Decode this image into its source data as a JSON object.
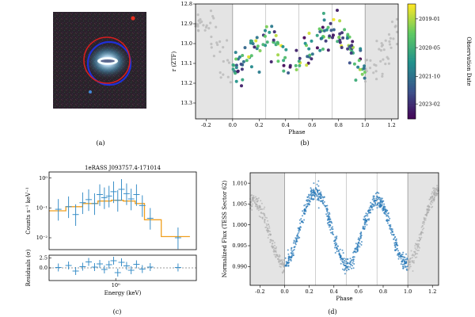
{
  "captions": {
    "a": "(a)",
    "b": "(b)",
    "c": "(c)",
    "d": "(d)"
  },
  "image_a": {
    "description_colors": {
      "background": "#2a1f2a",
      "red_ring": "#d61e1e",
      "blue_ring": "#2030d8",
      "core": "#e8f4ff"
    }
  },
  "chart_data": [
    {
      "id": "b",
      "type": "scatter",
      "xlabel": "Phase",
      "ylabel": "r (ZTF)",
      "xlim": [
        -0.28,
        1.25
      ],
      "ylim": [
        13.38,
        12.8
      ],
      "y_inverted": true,
      "x_ticks": [
        "-0.2",
        "0.0",
        "0.2",
        "0.4",
        "0.6",
        "0.8",
        "1.0",
        "1.2"
      ],
      "y_ticks": [
        "12.8",
        "12.9",
        "13.0",
        "13.1",
        "13.2",
        "13.3"
      ],
      "colorbar": {
        "label": "Observation Date",
        "ticks": [
          "2019-01",
          "2020-05",
          "2021-10",
          "2023-02"
        ],
        "colormap": "viridis"
      },
      "shaded_regions": [
        [
          -0.28,
          0.0
        ],
        [
          1.0,
          1.25
        ]
      ],
      "vertical_lines": [
        0.25,
        0.5,
        0.75
      ],
      "curve_model": {
        "mean": 13.03,
        "amp_primary": 0.13,
        "amp_secondary": 0.05,
        "scatter": 0.06
      }
    },
    {
      "id": "c",
      "type": "scatter",
      "title": "1eRASS J093757.4-171014",
      "xlabel": "Energy (keV)",
      "ylabel_top": "Counts s⁻¹ keV⁻¹",
      "ylabel_bottom": "Residuals (σ)",
      "y_ticks_top": [
        "10⁰",
        "10⁻¹",
        "10⁻²"
      ],
      "y_ticks_bottom": [
        "2.5",
        "0.0"
      ],
      "x_ticks": [
        "10⁰"
      ],
      "data_points": [
        {
          "e": 0.25,
          "v": 0.09
        },
        {
          "e": 0.32,
          "v": 0.11
        },
        {
          "e": 0.38,
          "v": 0.06
        },
        {
          "e": 0.45,
          "v": 0.15
        },
        {
          "e": 0.52,
          "v": 0.19
        },
        {
          "e": 0.6,
          "v": 0.14
        },
        {
          "e": 0.68,
          "v": 0.28
        },
        {
          "e": 0.76,
          "v": 0.22
        },
        {
          "e": 0.85,
          "v": 0.25
        },
        {
          "e": 0.95,
          "v": 0.35
        },
        {
          "e": 1.05,
          "v": 0.18
        },
        {
          "e": 1.15,
          "v": 0.42
        },
        {
          "e": 1.3,
          "v": 0.3
        },
        {
          "e": 1.45,
          "v": 0.2
        },
        {
          "e": 1.65,
          "v": 0.28
        },
        {
          "e": 1.9,
          "v": 0.12
        },
        {
          "e": 2.3,
          "v": 0.045
        },
        {
          "e": 4.5,
          "v": 0.01
        }
      ],
      "model_steps": [
        [
          0.2,
          0.08
        ],
        [
          0.3,
          0.11
        ],
        [
          0.45,
          0.14
        ],
        [
          0.65,
          0.17
        ],
        [
          0.9,
          0.18
        ],
        [
          1.2,
          0.17
        ],
        [
          1.6,
          0.14
        ],
        [
          2.0,
          0.04
        ],
        [
          3.0,
          0.011
        ],
        [
          6.0,
          0.011
        ]
      ],
      "residuals": [
        0.1,
        0.6,
        -0.8,
        0.3,
        1.5,
        0.2,
        1.0,
        -0.4,
        0.8,
        1.8,
        -1.2,
        1.4,
        0.5,
        -0.6,
        0.9,
        -0.3,
        0.2,
        0.1
      ]
    },
    {
      "id": "d",
      "type": "scatter",
      "xlabel": "Phase",
      "ylabel": "Normalized Flux (TESS Sector 62)",
      "xlim": [
        -0.28,
        1.25
      ],
      "ylim": [
        0.9855,
        1.0125
      ],
      "x_ticks": [
        "-0.2",
        "0.0",
        "0.2",
        "0.4",
        "0.6",
        "0.8",
        "1.0",
        "1.2"
      ],
      "y_ticks": [
        "0.990",
        "0.995",
        "1.000",
        "1.005",
        "1.010"
      ],
      "shaded_regions": [
        [
          -0.28,
          0.0
        ],
        [
          1.0,
          1.25
        ]
      ],
      "vertical_lines": [
        0.25,
        0.5,
        0.75
      ],
      "curve_model": {
        "mean": 0.9995,
        "amp_primary": 0.0085,
        "amp_secondary": 0.0012,
        "scatter": 0.0012
      },
      "color": "#2a7ab8"
    }
  ]
}
